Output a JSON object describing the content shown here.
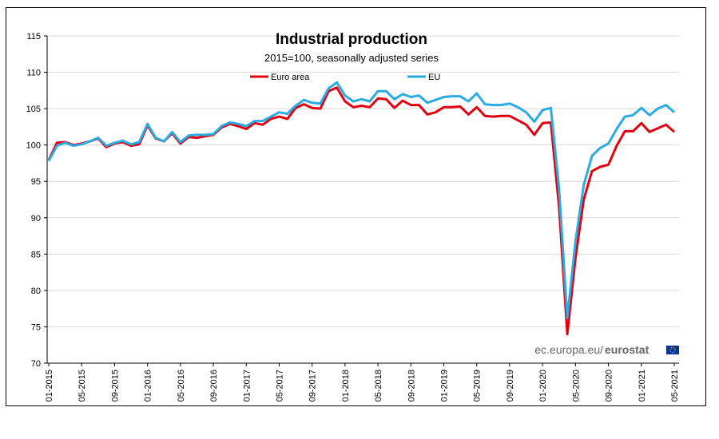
{
  "chart_data": {
    "type": "line",
    "title": "Industrial production",
    "subtitle": "2015=100, seasonally adjusted series",
    "xlabel": "",
    "ylabel": "",
    "ylim": [
      70,
      115
    ],
    "yticks": [
      70,
      75,
      80,
      85,
      90,
      95,
      100,
      105,
      110,
      115
    ],
    "grid": true,
    "legend_position": "top-center",
    "x_tick_labels": [
      "01-2015",
      "05-2015",
      "09-2015",
      "01-2016",
      "05-2016",
      "09-2016",
      "01-2017",
      "05-2017",
      "09-2017",
      "01-2018",
      "05-2018",
      "09-2018",
      "01-2019",
      "05-2019",
      "09-2019",
      "01-2020",
      "05-2020",
      "09-2020",
      "01-2021",
      "05-2021"
    ],
    "series": [
      {
        "name": "Euro area",
        "color": "#e3000f",
        "values": [
          97.9,
          100.3,
          100.4,
          100.0,
          100.2,
          100.5,
          100.9,
          99.7,
          100.2,
          100.4,
          99.9,
          100.1,
          102.7,
          100.9,
          100.5,
          101.6,
          100.2,
          101.1,
          101.0,
          101.2,
          101.4,
          102.4,
          102.9,
          102.6,
          102.2,
          103.0,
          102.8,
          103.6,
          103.9,
          103.6,
          105.1,
          105.6,
          105.1,
          105.0,
          107.4,
          107.9,
          106.0,
          105.2,
          105.4,
          105.2,
          106.4,
          106.3,
          105.1,
          106.1,
          105.5,
          105.5,
          104.2,
          104.5,
          105.2,
          105.2,
          105.3,
          104.2,
          105.2,
          104.0,
          103.9,
          104.0,
          104.0,
          103.4,
          102.8,
          101.4,
          103.0,
          103.1,
          91.5,
          74.0,
          84.5,
          92.5,
          96.4,
          97.0,
          97.3,
          99.9,
          101.9,
          101.9,
          103.0,
          101.8,
          102.3,
          102.8,
          101.8
        ],
        "x_start": "01-2015"
      },
      {
        "name": "EU",
        "color": "#2aabe2",
        "values": [
          97.8,
          99.9,
          100.3,
          99.9,
          100.1,
          100.5,
          101.0,
          99.9,
          100.3,
          100.6,
          100.1,
          100.4,
          102.9,
          101.0,
          100.5,
          101.8,
          100.4,
          101.3,
          101.4,
          101.4,
          101.5,
          102.6,
          103.1,
          102.9,
          102.6,
          103.3,
          103.3,
          103.9,
          104.5,
          104.3,
          105.4,
          106.2,
          105.8,
          105.7,
          107.8,
          108.6,
          106.8,
          106.0,
          106.3,
          106.0,
          107.4,
          107.4,
          106.3,
          107.0,
          106.6,
          106.8,
          105.8,
          106.2,
          106.6,
          106.7,
          106.7,
          106.0,
          107.1,
          105.6,
          105.5,
          105.5,
          105.7,
          105.2,
          104.5,
          103.2,
          104.8,
          105.1,
          94.0,
          76.2,
          86.8,
          94.5,
          98.5,
          99.6,
          100.2,
          102.2,
          103.9,
          104.1,
          105.1,
          104.1,
          105.0,
          105.5,
          104.5
        ],
        "x_start": "01-2015"
      }
    ]
  },
  "credit": {
    "prefix": "ec.europa.eu/",
    "brand": "eurostat"
  }
}
